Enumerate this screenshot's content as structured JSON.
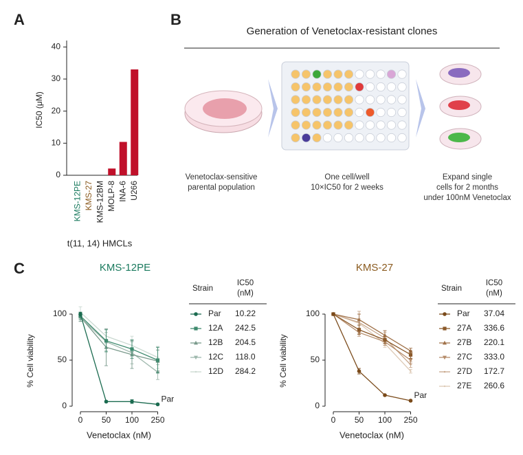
{
  "panel_labels": [
    "A",
    "B",
    "C"
  ],
  "diagram": {
    "title": "Generation of Venetoclax-resistant clones",
    "steps": [
      "Venetoclax-sensitive\nparental population",
      "One cell/well\n10×IC50 for 2 weeks",
      "Expand single\ncells for 2 months\nunder 100nM Venetoclax"
    ]
  },
  "chart_data": [
    {
      "type": "bar",
      "ylabel": "IC50 (μM)",
      "xlabel": "t(11, 14) HMCLs",
      "categories": [
        "KMS-12PE",
        "KMS-27",
        "KMS-12BM",
        "MOLP-8",
        "INA-6",
        "U266"
      ],
      "category_colors": [
        "#1a7a5e",
        "#8a5a1e",
        "#222222",
        "#222222",
        "#222222",
        "#222222"
      ],
      "values": [
        0,
        0,
        0,
        2.1,
        10.4,
        33
      ],
      "color": "#c0102a",
      "ylim": [
        0,
        42
      ],
      "yticks": [
        0,
        10,
        20,
        30,
        40
      ]
    },
    {
      "type": "line",
      "title": "KMS-12PE",
      "title_color": "#1a7a5e",
      "xlabel": "Venetoclax (nM)",
      "ylabel": "% Cell viability",
      "categories": [
        "0",
        "50",
        "100",
        "250"
      ],
      "ylim": [
        0,
        100
      ],
      "yticks": [
        0,
        50,
        100
      ],
      "legend_header": [
        "Strain",
        "IC50 (nM)"
      ],
      "annotation": "Par",
      "series": [
        {
          "name": "Par",
          "ic50": "10.22",
          "color": "#1b6b50",
          "marker": "circle",
          "values": [
            100,
            5,
            5,
            2
          ],
          "errors": [
            2,
            1,
            2,
            1
          ]
        },
        {
          "name": "12A",
          "ic50": "242.5",
          "color": "#3e8a6e",
          "marker": "square",
          "values": [
            98,
            71,
            62,
            50
          ],
          "errors": [
            4,
            12,
            10,
            14
          ]
        },
        {
          "name": "12B",
          "ic50": "204.5",
          "color": "#7a9a8c",
          "marker": "triangle",
          "values": [
            97,
            64,
            56,
            49
          ],
          "errors": [
            5,
            20,
            15,
            12
          ]
        },
        {
          "name": "12C",
          "ic50": "118.0",
          "color": "#9fb8ad",
          "marker": "tridown",
          "values": [
            96,
            70,
            58,
            37
          ],
          "errors": [
            4,
            10,
            12,
            8
          ]
        },
        {
          "name": "12D",
          "ic50": "284.2",
          "color": "#c9d8d0",
          "marker": "none",
          "values": [
            102,
            76,
            66,
            53
          ],
          "errors": [
            6,
            8,
            10,
            12
          ]
        }
      ]
    },
    {
      "type": "line",
      "title": "KMS-27",
      "title_color": "#8a5a1e",
      "xlabel": "Venetoclax (nM)",
      "ylabel": "% Cell viability",
      "categories": [
        "0",
        "50",
        "100",
        "250"
      ],
      "ylim": [
        0,
        100
      ],
      "yticks": [
        0,
        50,
        100
      ],
      "legend_header": [
        "Strain",
        "IC50 (nM)"
      ],
      "annotation": "Par",
      "series": [
        {
          "name": "Par",
          "ic50": "37.04",
          "color": "#7a4a1a",
          "marker": "circle",
          "values": [
            100,
            38,
            12,
            6
          ],
          "errors": [
            1,
            3,
            1,
            1
          ]
        },
        {
          "name": "27A",
          "ic50": "336.6",
          "color": "#8b5a2b",
          "marker": "square",
          "values": [
            100,
            83,
            72,
            56
          ],
          "errors": [
            1,
            5,
            4,
            4
          ]
        },
        {
          "name": "27B",
          "ic50": "220.1",
          "color": "#a0724a",
          "marker": "triangle",
          "values": [
            100,
            94,
            77,
            60
          ],
          "errors": [
            1,
            6,
            5,
            3
          ]
        },
        {
          "name": "27C",
          "ic50": "333.0",
          "color": "#b58c6a",
          "marker": "tridown",
          "values": [
            100,
            80,
            70,
            50
          ],
          "errors": [
            1,
            4,
            4,
            4
          ]
        },
        {
          "name": "27D",
          "ic50": "172.7",
          "color": "#c7a68a",
          "marker": "none",
          "values": [
            100,
            91,
            74,
            45
          ],
          "errors": [
            1,
            12,
            6,
            3
          ]
        },
        {
          "name": "27E",
          "ic50": "260.6",
          "color": "#ddc9b5",
          "marker": "none",
          "values": [
            100,
            90,
            68,
            38
          ],
          "errors": [
            1,
            5,
            4,
            2
          ]
        }
      ]
    }
  ]
}
